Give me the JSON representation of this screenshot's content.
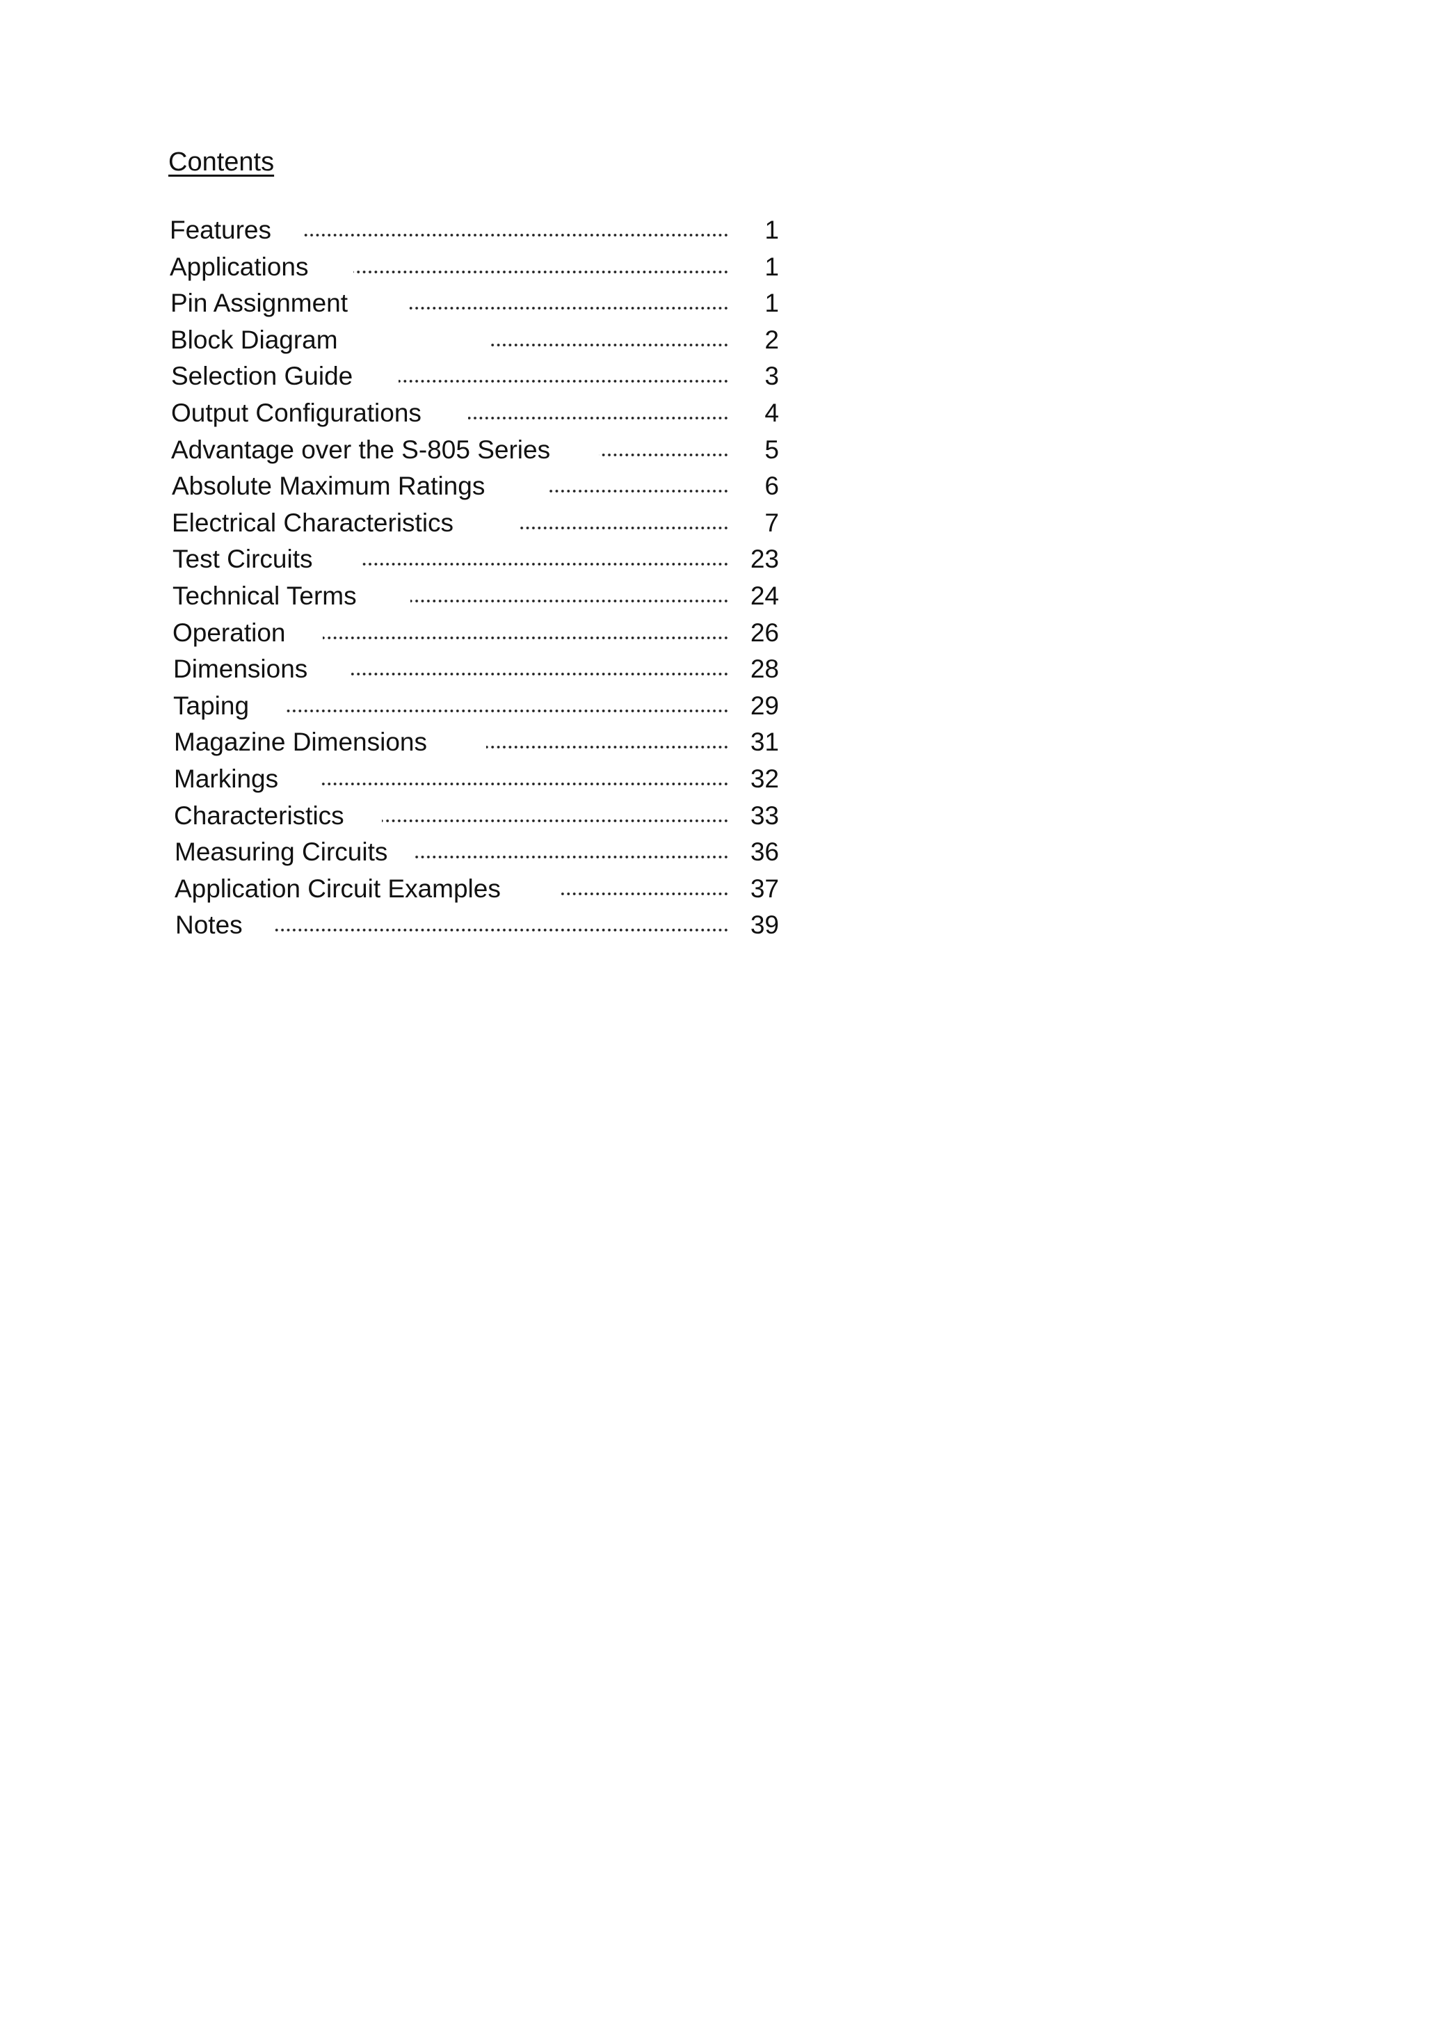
{
  "title": "Contents",
  "entries": [
    {
      "label": "Features",
      "page": "1"
    },
    {
      "label": "Applications",
      "page": "1"
    },
    {
      "label": "Pin Assignment",
      "page": "1"
    },
    {
      "label": "Block Diagram",
      "page": "2"
    },
    {
      "label": "Selection Guide",
      "page": "3"
    },
    {
      "label": "Output Configurations",
      "page": "4"
    },
    {
      "label": "Advantage over the S-805 Series",
      "page": "5"
    },
    {
      "label": "Absolute Maximum Ratings",
      "page": "6"
    },
    {
      "label": "Electrical Characteristics",
      "page": "7"
    },
    {
      "label": "Test Circuits",
      "page": "23"
    },
    {
      "label": "Technical Terms",
      "page": "24"
    },
    {
      "label": "Operation",
      "page": "26"
    },
    {
      "label": "Dimensions",
      "page": "28"
    },
    {
      "label": "Taping",
      "page": "29"
    },
    {
      "label": "Magazine Dimensions",
      "page": "31"
    },
    {
      "label": "Markings",
      "page": "32"
    },
    {
      "label": "Characteristics",
      "page": "33"
    },
    {
      "label": "Measuring Circuits",
      "page": "36"
    },
    {
      "label": "Application Circuit Examples",
      "page": "37"
    },
    {
      "label": "Notes",
      "page": "39"
    }
  ]
}
